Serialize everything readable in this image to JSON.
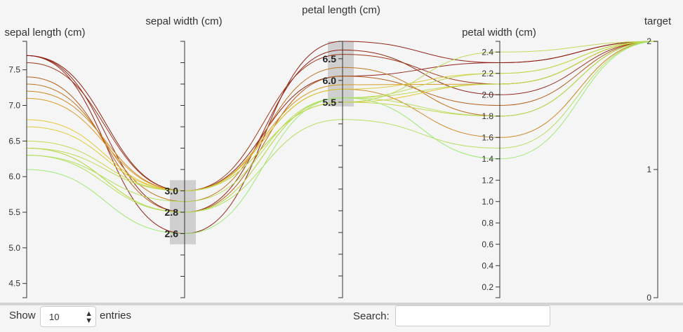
{
  "chart_data": {
    "type": "parallel-coordinates",
    "dimensions": [
      {
        "key": "sepal_length",
        "label": "sepal length (cm)",
        "domain": [
          4.3,
          7.9
        ],
        "ticks": [
          4.5,
          5.0,
          5.5,
          6.0,
          6.5,
          7.0,
          7.5
        ],
        "tick_labels": [
          "4.5",
          "5.0",
          "5.5",
          "6.0",
          "6.5",
          "7.0",
          "7.5"
        ],
        "minor": [
          4.5,
          5.0,
          5.5,
          6.0,
          6.5,
          7.0,
          7.5
        ],
        "brush": null
      },
      {
        "key": "sepal_width",
        "label": "sepal width (cm)",
        "domain": [
          2.0,
          4.4
        ],
        "ticks": [],
        "tick_labels": [],
        "minor": [
          2.0,
          2.2,
          2.4,
          2.6,
          2.8,
          3.0,
          3.2,
          3.4,
          3.6,
          3.8,
          4.0,
          4.2,
          4.4
        ],
        "brush": [
          2.5,
          3.1
        ],
        "brush_ticks": [
          2.6,
          2.8,
          3.0
        ],
        "brush_tick_labels": [
          "2.6",
          "2.8",
          "3.0"
        ]
      },
      {
        "key": "petal_length",
        "label": "petal length (cm)",
        "domain": [
          1.0,
          6.9
        ],
        "ticks": [],
        "tick_labels": [],
        "minor": [
          1.0,
          1.5,
          2.0,
          2.5,
          3.0,
          3.5,
          4.0,
          4.5,
          5.0,
          5.5,
          6.0,
          6.5
        ],
        "brush": [
          5.4,
          6.9
        ],
        "brush_ticks": [
          5.5,
          6.0,
          6.5
        ],
        "brush_tick_labels": [
          "5.5",
          "6.0",
          "6.5"
        ]
      },
      {
        "key": "petal_width",
        "label": "petal width (cm)",
        "domain": [
          0.1,
          2.5
        ],
        "ticks": [
          0.2,
          0.4,
          0.6,
          0.8,
          1.0,
          1.2,
          1.4,
          1.6,
          1.8,
          2.0,
          2.2,
          2.4
        ],
        "tick_labels": [
          "0.2",
          "0.4",
          "0.6",
          "0.8",
          "1.0",
          "1.2",
          "1.4",
          "1.6",
          "1.8",
          "2.0",
          "2.2",
          "2.4"
        ],
        "minor": [
          0.2,
          0.4,
          0.6,
          0.8,
          1.0,
          1.2,
          1.4,
          1.6,
          1.8,
          2.0,
          2.2,
          2.4
        ],
        "brush": null
      },
      {
        "key": "target",
        "label": "target",
        "domain": [
          0,
          2
        ],
        "ticks": [
          0,
          1,
          2
        ],
        "tick_labels": [
          "0",
          "1",
          "2"
        ],
        "minor": [
          0,
          1,
          2
        ],
        "brush": null
      }
    ],
    "records": [
      [
        7.7,
        2.6,
        6.9,
        2.3,
        2
      ],
      [
        7.7,
        3.0,
        6.1,
        2.3,
        2
      ],
      [
        7.7,
        2.8,
        6.7,
        2.0,
        2
      ],
      [
        7.6,
        3.0,
        6.6,
        2.1,
        2
      ],
      [
        7.4,
        2.8,
        6.1,
        1.9,
        2
      ],
      [
        7.3,
        2.9,
        6.3,
        1.8,
        2
      ],
      [
        7.2,
        3.0,
        5.8,
        1.6,
        2
      ],
      [
        7.1,
        3.0,
        5.9,
        2.1,
        2
      ],
      [
        6.8,
        3.0,
        5.5,
        2.1,
        2
      ],
      [
        6.7,
        3.0,
        5.8,
        2.2,
        2
      ],
      [
        6.5,
        3.0,
        5.5,
        1.8,
        2
      ],
      [
        6.4,
        2.8,
        5.6,
        2.1,
        2
      ],
      [
        6.4,
        2.8,
        5.6,
        2.2,
        2
      ],
      [
        6.3,
        2.9,
        5.6,
        1.8,
        2
      ],
      [
        6.3,
        2.8,
        5.1,
        1.5,
        2
      ],
      [
        6.1,
        2.6,
        5.6,
        1.4,
        2
      ],
      [
        6.4,
        3.0,
        5.5,
        2.4,
        2
      ]
    ],
    "color": {
      "by": "sepal_length",
      "low": "#9ae870",
      "mid": "#f0c020",
      "high": "#8b1a0d",
      "domain": [
        6.1,
        6.9,
        7.7
      ]
    },
    "brush_color": "#c8c8c8"
  },
  "footer": {
    "show_label": "Show",
    "length_value": "10",
    "entries_label": "entries",
    "search_label": "Search:",
    "search_value": ""
  }
}
